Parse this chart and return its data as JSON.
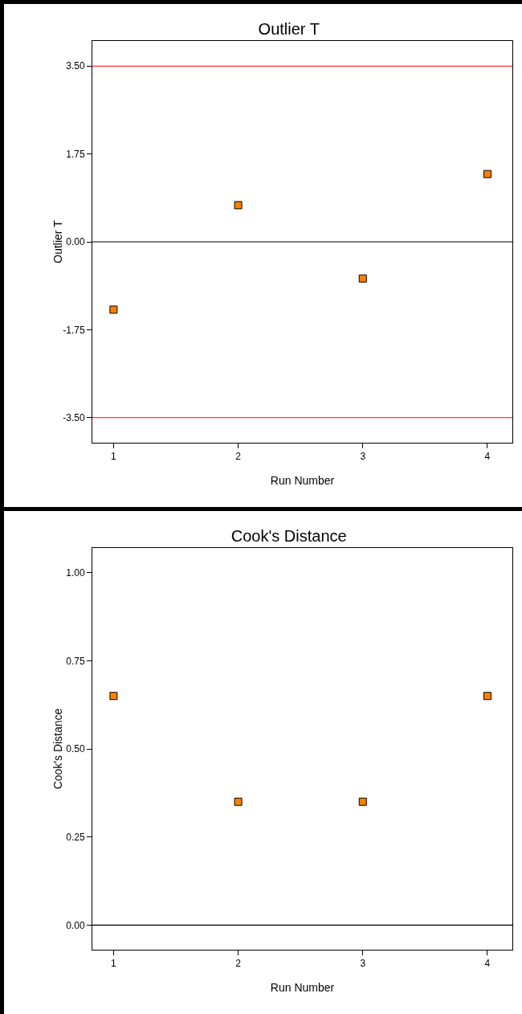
{
  "chart_data": [
    {
      "type": "scatter",
      "title": "Outlier T",
      "xlabel": "Run Number",
      "ylabel": "Outlier T",
      "x": [
        1,
        2,
        3,
        4
      ],
      "marker": "square",
      "series": [
        {
          "color": "#ff8000",
          "values": [
            -1.35,
            0.73,
            -0.73,
            1.35
          ]
        }
      ],
      "xlim": [
        0.83,
        4.2
      ],
      "xticks": [
        1,
        2,
        3,
        4
      ],
      "ylim": [
        -4.0,
        4.0
      ],
      "yticks": [
        {
          "value": -3.5,
          "label": "-3.50"
        },
        {
          "value": -1.75,
          "label": "-1.75"
        },
        {
          "value": 0,
          "label": "0.00"
        },
        {
          "value": 1.75,
          "label": "1.75"
        },
        {
          "value": 3.5,
          "label": "3.50"
        }
      ],
      "ref_lines": [
        {
          "axis": "y",
          "value": 3.5,
          "color": "#ff0000"
        },
        {
          "axis": "y",
          "value": 0,
          "color": "#000000"
        },
        {
          "axis": "y",
          "value": -3.5,
          "color": "#ff0000"
        }
      ]
    },
    {
      "type": "scatter",
      "title": "Cook's Distance",
      "xlabel": "Run Number",
      "ylabel": "Cook's Distance",
      "x": [
        1,
        2,
        3,
        4
      ],
      "marker": "square",
      "series": [
        {
          "color": "#ff8000",
          "values": [
            0.65,
            0.35,
            0.35,
            0.65
          ]
        }
      ],
      "xlim": [
        0.83,
        4.2
      ],
      "xticks": [
        1,
        2,
        3,
        4
      ],
      "ylim": [
        -0.07,
        1.07
      ],
      "yticks": [
        {
          "value": 0,
          "label": "0.00"
        },
        {
          "value": 0.25,
          "label": "0.25"
        },
        {
          "value": 0.5,
          "label": "0.50"
        },
        {
          "value": 0.75,
          "label": "0.75"
        },
        {
          "value": 1,
          "label": "1.00"
        }
      ],
      "ref_lines": [
        {
          "axis": "y",
          "value": 0,
          "color": "#000000"
        }
      ]
    }
  ]
}
